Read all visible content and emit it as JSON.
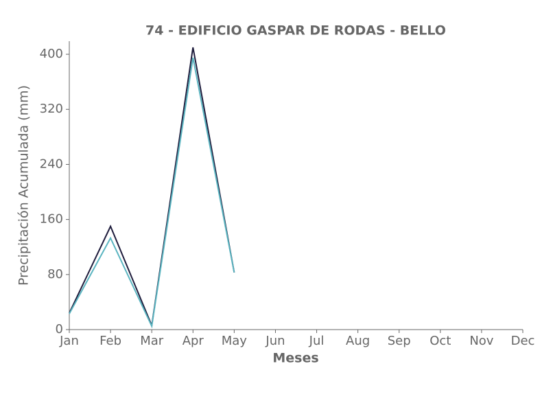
{
  "chart_data": {
    "type": "line",
    "title": "74 - EDIFICIO GASPAR DE RODAS - BELLO",
    "x_label": "Meses",
    "y_label": "Precipitación Acumulada (mm)",
    "categories": [
      "Jan",
      "Feb",
      "Mar",
      "Apr",
      "May",
      "Jun",
      "Jul",
      "Aug",
      "Sep",
      "Oct",
      "Nov",
      "Dec"
    ],
    "series": [
      {
        "color": "#1f1d3d",
        "values": [
          24,
          150,
          6,
          410,
          83,
          null,
          null,
          null,
          null,
          null,
          null,
          null
        ]
      },
      {
        "color": "#5ab4c0",
        "values": [
          23,
          133,
          5,
          395,
          83,
          null,
          null,
          null,
          null,
          null,
          null,
          null
        ]
      }
    ],
    "ylim": [
      0,
      419
    ],
    "yticks": [
      0,
      80,
      160,
      240,
      320,
      400
    ],
    "grid": false
  }
}
